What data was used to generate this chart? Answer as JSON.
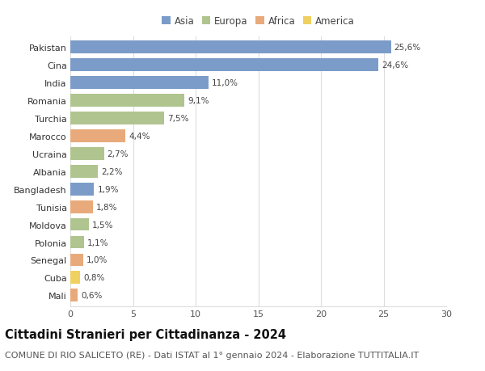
{
  "countries": [
    "Pakistan",
    "Cina",
    "India",
    "Romania",
    "Turchia",
    "Marocco",
    "Ucraina",
    "Albania",
    "Bangladesh",
    "Tunisia",
    "Moldova",
    "Polonia",
    "Senegal",
    "Cuba",
    "Mali"
  ],
  "values": [
    25.6,
    24.6,
    11.0,
    9.1,
    7.5,
    4.4,
    2.7,
    2.2,
    1.9,
    1.8,
    1.5,
    1.1,
    1.0,
    0.8,
    0.6
  ],
  "labels": [
    "25,6%",
    "24,6%",
    "11,0%",
    "9,1%",
    "7,5%",
    "4,4%",
    "2,7%",
    "2,2%",
    "1,9%",
    "1,8%",
    "1,5%",
    "1,1%",
    "1,0%",
    "0,8%",
    "0,6%"
  ],
  "categories": [
    "Asia",
    "Asia",
    "Asia",
    "Europa",
    "Europa",
    "Africa",
    "Europa",
    "Europa",
    "Asia",
    "Africa",
    "Europa",
    "Europa",
    "Africa",
    "America",
    "Africa"
  ],
  "colors": {
    "Asia": "#7b9cc8",
    "Europa": "#b0c490",
    "Africa": "#e8aa7a",
    "America": "#f0d060"
  },
  "legend_labels": [
    "Asia",
    "Europa",
    "Africa",
    "America"
  ],
  "legend_colors": [
    "#7b9cc8",
    "#b0c490",
    "#e8aa7a",
    "#f0d060"
  ],
  "title": "Cittadini Stranieri per Cittadinanza - 2024",
  "subtitle": "COMUNE DI RIO SALICETO (RE) - Dati ISTAT al 1° gennaio 2024 - Elaborazione TUTTITALIA.IT",
  "xlim": [
    0,
    30
  ],
  "xticks": [
    0,
    5,
    10,
    15,
    20,
    25,
    30
  ],
  "background_color": "#ffffff",
  "plot_bg_color": "#ffffff",
  "grid_color": "#dddddd",
  "title_fontsize": 10.5,
  "subtitle_fontsize": 8,
  "label_fontsize": 7.5,
  "tick_fontsize": 8,
  "bar_height": 0.72
}
